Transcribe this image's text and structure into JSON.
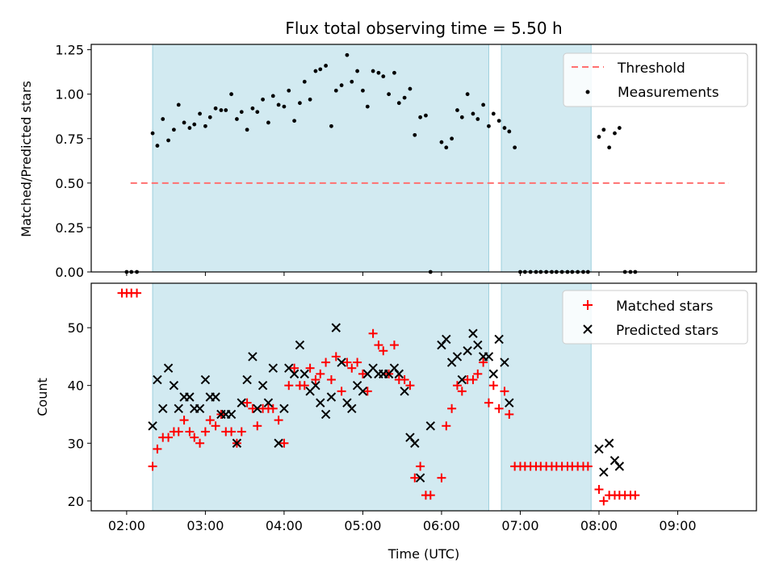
{
  "chart_data": [
    {
      "type": "scatter",
      "title": "Flux total observing time = 5.50 h",
      "xlabel": "",
      "ylabel": "Matched/Predicted stars",
      "xlim": [
        1.55,
        10.0
      ],
      "ylim": [
        0.0,
        1.28
      ],
      "yticks": [
        0.0,
        0.25,
        0.5,
        0.75,
        1.0,
        1.25
      ],
      "ytick_labels": [
        "0.00",
        "0.25",
        "0.50",
        "0.75",
        "1.00",
        "1.25"
      ],
      "legend_position": "top-right",
      "shaded_spans": [
        [
          2.33,
          6.6
        ],
        [
          6.76,
          7.9
        ]
      ],
      "threshold": {
        "name": "Threshold",
        "y": 0.5,
        "x_start": 2.05,
        "x_end": 9.65,
        "color": "#ff7070"
      },
      "series": [
        {
          "name": "Measurements",
          "color": "#000000",
          "points": [
            [
              2.0,
              0
            ],
            [
              2.06,
              0
            ],
            [
              2.13,
              0
            ],
            [
              2.33,
              0.78
            ],
            [
              2.39,
              0.71
            ],
            [
              2.46,
              0.86
            ],
            [
              2.53,
              0.74
            ],
            [
              2.6,
              0.8
            ],
            [
              2.66,
              0.94
            ],
            [
              2.73,
              0.84
            ],
            [
              2.8,
              0.81
            ],
            [
              2.86,
              0.83
            ],
            [
              2.93,
              0.89
            ],
            [
              3.0,
              0.82
            ],
            [
              3.06,
              0.87
            ],
            [
              3.13,
              0.92
            ],
            [
              3.2,
              0.91
            ],
            [
              3.26,
              0.91
            ],
            [
              3.33,
              1.0
            ],
            [
              3.4,
              0.86
            ],
            [
              3.46,
              0.9
            ],
            [
              3.53,
              0.8
            ],
            [
              3.6,
              0.92
            ],
            [
              3.66,
              0.9
            ],
            [
              3.73,
              0.97
            ],
            [
              3.8,
              0.84
            ],
            [
              3.86,
              0.99
            ],
            [
              3.93,
              0.94
            ],
            [
              4.0,
              0.93
            ],
            [
              4.06,
              1.02
            ],
            [
              4.13,
              0.85
            ],
            [
              4.2,
              0.95
            ],
            [
              4.26,
              1.07
            ],
            [
              4.33,
              0.97
            ],
            [
              4.4,
              1.13
            ],
            [
              4.46,
              1.14
            ],
            [
              4.53,
              1.16
            ],
            [
              4.6,
              0.82
            ],
            [
              4.66,
              1.02
            ],
            [
              4.73,
              1.05
            ],
            [
              4.8,
              1.22
            ],
            [
              4.86,
              1.07
            ],
            [
              4.93,
              1.13
            ],
            [
              5.0,
              1.02
            ],
            [
              5.06,
              0.93
            ],
            [
              5.13,
              1.13
            ],
            [
              5.2,
              1.12
            ],
            [
              5.26,
              1.1
            ],
            [
              5.33,
              1.0
            ],
            [
              5.4,
              1.12
            ],
            [
              5.46,
              0.95
            ],
            [
              5.53,
              0.98
            ],
            [
              5.6,
              1.03
            ],
            [
              5.66,
              0.77
            ],
            [
              5.73,
              0.87
            ],
            [
              5.8,
              0.88
            ],
            [
              5.86,
              0
            ],
            [
              6.0,
              0.73
            ],
            [
              6.06,
              0.7
            ],
            [
              6.13,
              0.75
            ],
            [
              6.2,
              0.91
            ],
            [
              6.26,
              0.87
            ],
            [
              6.33,
              1.0
            ],
            [
              6.4,
              0.89
            ],
            [
              6.46,
              0.86
            ],
            [
              6.53,
              0.94
            ],
            [
              6.6,
              0.82
            ],
            [
              6.66,
              0.89
            ],
            [
              6.73,
              0.85
            ],
            [
              6.8,
              0.81
            ],
            [
              6.86,
              0.79
            ],
            [
              6.93,
              0.7
            ],
            [
              7.0,
              0
            ],
            [
              7.06,
              0
            ],
            [
              7.13,
              0
            ],
            [
              7.2,
              0
            ],
            [
              7.26,
              0
            ],
            [
              7.33,
              0
            ],
            [
              7.4,
              0
            ],
            [
              7.46,
              0
            ],
            [
              7.53,
              0
            ],
            [
              7.6,
              0
            ],
            [
              7.66,
              0
            ],
            [
              7.73,
              0
            ],
            [
              7.8,
              0
            ],
            [
              7.86,
              0
            ],
            [
              8.0,
              0.76
            ],
            [
              8.06,
              0.8
            ],
            [
              8.13,
              0.7
            ],
            [
              8.2,
              0.78
            ],
            [
              8.26,
              0.81
            ],
            [
              8.33,
              0
            ],
            [
              8.4,
              0
            ],
            [
              8.46,
              0
            ]
          ]
        }
      ]
    },
    {
      "type": "scatter",
      "title": "",
      "xlabel": "Time (UTC)",
      "ylabel": "Count",
      "xlim": [
        1.55,
        10.0
      ],
      "ylim": [
        18.3,
        57.7
      ],
      "yticks": [
        20,
        30,
        40,
        50
      ],
      "ytick_labels": [
        "20",
        "30",
        "40",
        "50"
      ],
      "xticks": [
        2,
        3,
        4,
        5,
        6,
        7,
        8,
        9
      ],
      "xtick_labels": [
        "02:00",
        "03:00",
        "04:00",
        "05:00",
        "06:00",
        "07:00",
        "08:00",
        "09:00"
      ],
      "legend_position": "top-right",
      "shaded_spans": [
        [
          2.33,
          6.6
        ],
        [
          6.76,
          7.9
        ]
      ],
      "series": [
        {
          "name": "Matched stars",
          "color": "#ff0000",
          "marker": "plus",
          "points": [
            [
              1.94,
              56
            ],
            [
              2.0,
              56
            ],
            [
              2.06,
              56
            ],
            [
              2.13,
              56
            ],
            [
              2.33,
              26
            ],
            [
              2.39,
              29
            ],
            [
              2.46,
              31
            ],
            [
              2.53,
              31
            ],
            [
              2.6,
              32
            ],
            [
              2.66,
              32
            ],
            [
              2.73,
              34
            ],
            [
              2.8,
              32
            ],
            [
              2.86,
              31
            ],
            [
              2.93,
              30
            ],
            [
              3.0,
              32
            ],
            [
              3.06,
              34
            ],
            [
              3.13,
              33
            ],
            [
              3.2,
              35
            ],
            [
              3.26,
              32
            ],
            [
              3.33,
              32
            ],
            [
              3.4,
              30
            ],
            [
              3.46,
              32
            ],
            [
              3.53,
              37
            ],
            [
              3.6,
              36
            ],
            [
              3.66,
              33
            ],
            [
              3.73,
              36
            ],
            [
              3.8,
              36
            ],
            [
              3.86,
              36
            ],
            [
              3.93,
              34
            ],
            [
              4.0,
              30
            ],
            [
              4.06,
              40
            ],
            [
              4.13,
              43
            ],
            [
              4.2,
              40
            ],
            [
              4.26,
              40
            ],
            [
              4.33,
              43
            ],
            [
              4.4,
              41
            ],
            [
              4.46,
              42
            ],
            [
              4.53,
              44
            ],
            [
              4.6,
              41
            ],
            [
              4.66,
              45
            ],
            [
              4.73,
              39
            ],
            [
              4.8,
              44
            ],
            [
              4.86,
              43
            ],
            [
              4.93,
              44
            ],
            [
              5.0,
              42
            ],
            [
              5.06,
              39
            ],
            [
              5.13,
              49
            ],
            [
              5.2,
              47
            ],
            [
              5.26,
              46
            ],
            [
              5.33,
              42
            ],
            [
              5.4,
              47
            ],
            [
              5.46,
              41
            ],
            [
              5.53,
              41
            ],
            [
              5.6,
              40
            ],
            [
              5.66,
              24
            ],
            [
              5.73,
              26
            ],
            [
              5.8,
              21
            ],
            [
              5.86,
              21
            ],
            [
              6.0,
              24
            ],
            [
              6.06,
              33
            ],
            [
              6.13,
              36
            ],
            [
              6.2,
              40
            ],
            [
              6.26,
              39
            ],
            [
              6.33,
              41
            ],
            [
              6.4,
              41
            ],
            [
              6.46,
              42
            ],
            [
              6.53,
              44
            ],
            [
              6.6,
              37
            ],
            [
              6.66,
              40
            ],
            [
              6.73,
              36
            ],
            [
              6.8,
              39
            ],
            [
              6.86,
              35
            ],
            [
              6.93,
              26
            ],
            [
              7.0,
              26
            ],
            [
              7.06,
              26
            ],
            [
              7.13,
              26
            ],
            [
              7.2,
              26
            ],
            [
              7.26,
              26
            ],
            [
              7.33,
              26
            ],
            [
              7.4,
              26
            ],
            [
              7.46,
              26
            ],
            [
              7.53,
              26
            ],
            [
              7.6,
              26
            ],
            [
              7.66,
              26
            ],
            [
              7.73,
              26
            ],
            [
              7.8,
              26
            ],
            [
              7.86,
              26
            ],
            [
              8.0,
              22
            ],
            [
              8.06,
              20
            ],
            [
              8.13,
              21
            ],
            [
              8.2,
              21
            ],
            [
              8.26,
              21
            ],
            [
              8.33,
              21
            ],
            [
              8.4,
              21
            ],
            [
              8.46,
              21
            ]
          ]
        },
        {
          "name": "Predicted stars",
          "color": "#000000",
          "marker": "x",
          "points": [
            [
              2.33,
              33
            ],
            [
              2.39,
              41
            ],
            [
              2.46,
              36
            ],
            [
              2.53,
              43
            ],
            [
              2.6,
              40
            ],
            [
              2.66,
              36
            ],
            [
              2.73,
              38
            ],
            [
              2.8,
              38
            ],
            [
              2.86,
              36
            ],
            [
              2.93,
              36
            ],
            [
              3.0,
              41
            ],
            [
              3.06,
              38
            ],
            [
              3.13,
              38
            ],
            [
              3.2,
              35
            ],
            [
              3.26,
              35
            ],
            [
              3.33,
              35
            ],
            [
              3.4,
              30
            ],
            [
              3.46,
              37
            ],
            [
              3.53,
              41
            ],
            [
              3.6,
              45
            ],
            [
              3.66,
              36
            ],
            [
              3.73,
              40
            ],
            [
              3.8,
              37
            ],
            [
              3.86,
              43
            ],
            [
              3.93,
              30
            ],
            [
              4.0,
              36
            ],
            [
              4.06,
              43
            ],
            [
              4.13,
              42
            ],
            [
              4.2,
              47
            ],
            [
              4.26,
              42
            ],
            [
              4.33,
              39
            ],
            [
              4.4,
              40
            ],
            [
              4.46,
              37
            ],
            [
              4.53,
              35
            ],
            [
              4.6,
              38
            ],
            [
              4.66,
              50
            ],
            [
              4.73,
              44
            ],
            [
              4.8,
              37
            ],
            [
              4.86,
              36
            ],
            [
              4.93,
              40
            ],
            [
              5.0,
              39
            ],
            [
              5.06,
              42
            ],
            [
              5.13,
              43
            ],
            [
              5.2,
              42
            ],
            [
              5.26,
              42
            ],
            [
              5.33,
              42
            ],
            [
              5.4,
              43
            ],
            [
              5.46,
              42
            ],
            [
              5.53,
              39
            ],
            [
              5.6,
              31
            ],
            [
              5.66,
              30
            ],
            [
              5.73,
              24
            ],
            [
              5.86,
              33
            ],
            [
              6.0,
              47
            ],
            [
              6.06,
              48
            ],
            [
              6.13,
              44
            ],
            [
              6.2,
              45
            ],
            [
              6.26,
              41
            ],
            [
              6.33,
              46
            ],
            [
              6.4,
              49
            ],
            [
              6.46,
              47
            ],
            [
              6.53,
              45
            ],
            [
              6.6,
              45
            ],
            [
              6.66,
              42
            ],
            [
              6.73,
              48
            ],
            [
              6.8,
              44
            ],
            [
              6.86,
              37
            ],
            [
              8.0,
              29
            ],
            [
              8.06,
              25
            ],
            [
              8.13,
              30
            ],
            [
              8.2,
              27
            ],
            [
              8.26,
              26
            ]
          ]
        }
      ]
    }
  ]
}
